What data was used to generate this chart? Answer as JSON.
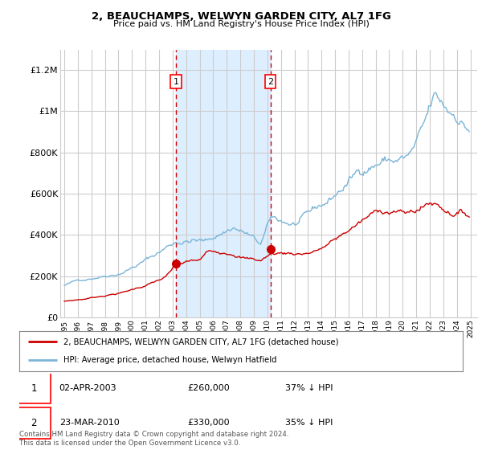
{
  "title": "2, BEAUCHAMPS, WELWYN GARDEN CITY, AL7 1FG",
  "subtitle": "Price paid vs. HM Land Registry's House Price Index (HPI)",
  "legend_line1": "2, BEAUCHAMPS, WELWYN GARDEN CITY, AL7 1FG (detached house)",
  "legend_line2": "HPI: Average price, detached house, Welwyn Hatfield",
  "footer": "Contains HM Land Registry data © Crown copyright and database right 2024.\nThis data is licensed under the Open Government Licence v3.0.",
  "annotation1": {
    "num": "1",
    "date": "02-APR-2003",
    "price": "£260,000",
    "hpi": "37% ↓ HPI"
  },
  "annotation2": {
    "num": "2",
    "date": "23-MAR-2010",
    "price": "£330,000",
    "hpi": "35% ↓ HPI"
  },
  "hpi_color": "#7ab5d8",
  "price_color": "#cc0000",
  "marker_color": "#cc0000",
  "vline_color": "#cc0000",
  "shade_color": "#ddeeff",
  "background_color": "#ffffff",
  "grid_color": "#cccccc",
  "sale1_x": 2003.25,
  "sale1_y": 260000,
  "sale2_x": 2010.22,
  "sale2_y": 330000,
  "ylim": [
    0,
    1300000
  ],
  "yticks": [
    0,
    200000,
    400000,
    600000,
    800000,
    1000000,
    1200000
  ],
  "ytick_labels": [
    "£0",
    "£200K",
    "£400K",
    "£600K",
    "£800K",
    "£1M",
    "£1.2M"
  ],
  "xmin": 1994.7,
  "xmax": 2025.5
}
